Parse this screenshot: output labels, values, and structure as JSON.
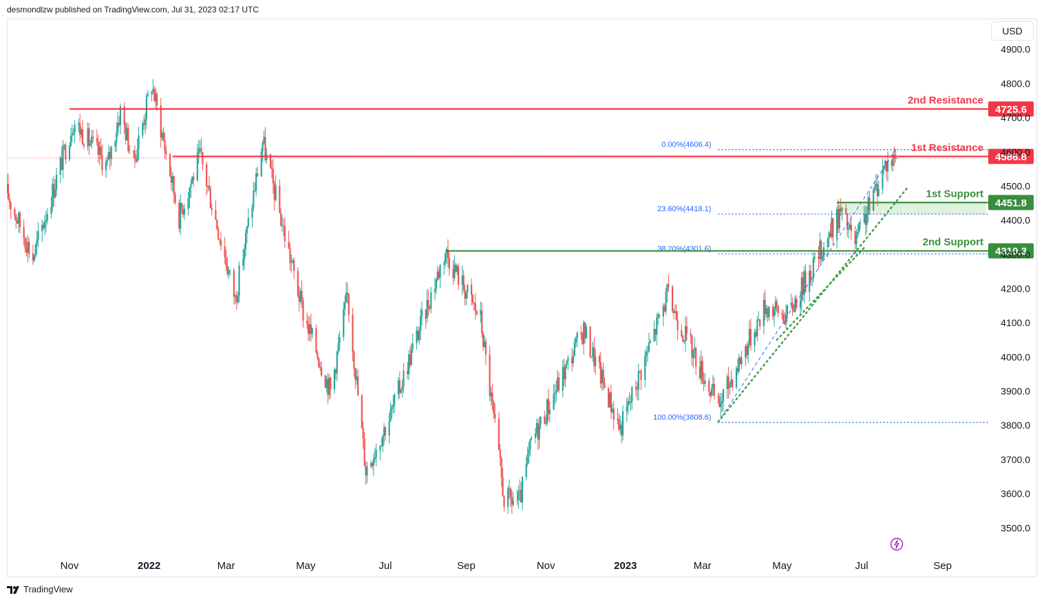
{
  "header": {
    "published_text": "desmondlzw published on TradingView.com, Jul 31, 2023 02:17 UTC"
  },
  "currency_label": "USD",
  "footer": {
    "brand": "TradingView"
  },
  "icons": {
    "footer_logo": "tradingview-logo-icon",
    "replay": "lightning-icon"
  },
  "colors": {
    "up": "#26a69a",
    "down": "#ef5350",
    "resistance": "#f23645",
    "support": "#388e3c",
    "fib": "#2962ff",
    "trend": "#43a047"
  },
  "chart_data": {
    "type": "candlestick",
    "title": "",
    "xlabel": "",
    "ylabel": "",
    "ylim": [
      3420,
      4990
    ],
    "y_ticks": [
      "3500.0",
      "3600.0",
      "3700.0",
      "3800.0",
      "3900.0",
      "4000.0",
      "4100.0",
      "4200.0",
      "4300.0",
      "4400.0",
      "4500.0",
      "4600.0",
      "4700.0",
      "4800.0",
      "4900.0"
    ],
    "x_ticks": [
      {
        "label": "Nov",
        "date": "2021-11-01",
        "bold": false
      },
      {
        "label": "2022",
        "date": "2022-01-01",
        "bold": true
      },
      {
        "label": "Mar",
        "date": "2022-03-01",
        "bold": false
      },
      {
        "label": "May",
        "date": "2022-05-01",
        "bold": false
      },
      {
        "label": "Jul",
        "date": "2022-07-01",
        "bold": false
      },
      {
        "label": "Sep",
        "date": "2022-09-01",
        "bold": false
      },
      {
        "label": "Nov",
        "date": "2022-11-01",
        "bold": false
      },
      {
        "label": "2023",
        "date": "2023-01-01",
        "bold": true
      },
      {
        "label": "Mar",
        "date": "2023-03-01",
        "bold": false
      },
      {
        "label": "May",
        "date": "2023-05-01",
        "bold": false
      },
      {
        "label": "Jul",
        "date": "2023-07-01",
        "bold": false
      },
      {
        "label": "Sep",
        "date": "2023-09-01",
        "bold": false
      }
    ],
    "x_range": [
      "2021-09-14",
      "2023-10-06"
    ],
    "price_path": [
      {
        "date": "2021-09-14",
        "close": 4480
      },
      {
        "date": "2021-10-04",
        "close": 4290
      },
      {
        "date": "2021-11-04",
        "close": 4690
      },
      {
        "date": "2021-11-30",
        "close": 4560
      },
      {
        "date": "2021-12-10",
        "close": 4720
      },
      {
        "date": "2021-12-20",
        "close": 4570
      },
      {
        "date": "2022-01-03",
        "close": 4800
      },
      {
        "date": "2022-01-24",
        "close": 4410
      },
      {
        "date": "2022-02-09",
        "close": 4590
      },
      {
        "date": "2022-03-08",
        "close": 4170
      },
      {
        "date": "2022-03-29",
        "close": 4630
      },
      {
        "date": "2022-04-29",
        "close": 4130
      },
      {
        "date": "2022-05-20",
        "close": 3900
      },
      {
        "date": "2022-06-02",
        "close": 4180
      },
      {
        "date": "2022-06-16",
        "close": 3670
      },
      {
        "date": "2022-07-05",
        "close": 3830
      },
      {
        "date": "2022-08-16",
        "close": 4310
      },
      {
        "date": "2022-09-12",
        "close": 4110
      },
      {
        "date": "2022-09-30",
        "close": 3585
      },
      {
        "date": "2022-10-12",
        "close": 3577
      },
      {
        "date": "2022-10-21",
        "close": 3750
      },
      {
        "date": "2022-11-30",
        "close": 4080
      },
      {
        "date": "2022-12-28",
        "close": 3790
      },
      {
        "date": "2023-02-02",
        "close": 4180
      },
      {
        "date": "2023-03-13",
        "close": 3855
      },
      {
        "date": "2023-04-18",
        "close": 4150
      },
      {
        "date": "2023-05-05",
        "close": 4120
      },
      {
        "date": "2023-06-15",
        "close": 4425
      },
      {
        "date": "2023-06-26",
        "close": 4330
      },
      {
        "date": "2023-07-19",
        "close": 4565
      },
      {
        "date": "2023-07-28",
        "close": 4582
      }
    ],
    "last_price": 4582,
    "levels": [
      {
        "name": "2nd Resistance",
        "value": 4725.6,
        "label": "4725.6",
        "kind": "resistance",
        "from": "2021-11-01"
      },
      {
        "name": "1st Resistance",
        "value": 4586.8,
        "label": "4586.8",
        "kind": "resistance",
        "from": "2022-01-19"
      },
      {
        "name": "1st Support",
        "value": 4451.8,
        "label": "4451.8",
        "kind": "support",
        "from": "2023-06-12"
      },
      {
        "name": "2nd Support",
        "value": 4310.3,
        "label": "4310.3",
        "kind": "support",
        "from": "2022-08-16"
      }
    ],
    "fibonacci": {
      "from": "2023-03-13",
      "to": "2023-07-27",
      "levels": [
        {
          "ratio": 0.0,
          "value": 4606.4,
          "label": "0.00%(4606.4)"
        },
        {
          "ratio": 0.236,
          "value": 4418.1,
          "label": "23.60%(4418.1)"
        },
        {
          "ratio": 0.382,
          "value": 4301.6,
          "label": "38.20%(4301.6)"
        },
        {
          "ratio": 1.0,
          "value": 3808.6,
          "label": "100.00%(3808.6)"
        }
      ]
    },
    "trendlines": [
      {
        "style": "dotted",
        "points": [
          {
            "date": "2023-03-13",
            "value": 3810
          },
          {
            "date": "2023-08-05",
            "value": 4495
          }
        ]
      },
      {
        "style": "dotted",
        "points": [
          {
            "date": "2023-04-27",
            "value": 4050
          },
          {
            "date": "2023-07-03",
            "value": 4320
          }
        ]
      }
    ],
    "support_zone": {
      "from": "2023-06-12",
      "to": "2023-10-04",
      "low": 4418.1,
      "high": 4451.8
    }
  }
}
